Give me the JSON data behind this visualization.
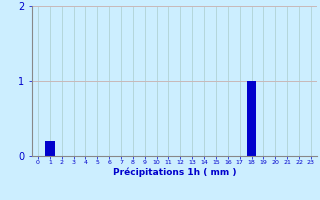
{
  "hours": [
    0,
    1,
    2,
    3,
    4,
    5,
    6,
    7,
    8,
    9,
    10,
    11,
    12,
    13,
    14,
    15,
    16,
    17,
    18,
    19,
    20,
    21,
    22,
    23
  ],
  "values": [
    0,
    0.2,
    0,
    0,
    0,
    0,
    0,
    0,
    0,
    0,
    0,
    0,
    0,
    0,
    0,
    0,
    0,
    0,
    1.0,
    0,
    0,
    0,
    0,
    0
  ],
  "bar_color": "#0000cc",
  "background_color": "#cceeff",
  "grid_color_h": "#c8b8b8",
  "grid_color_v": "#aacccc",
  "xlabel": "Précipitations 1h ( mm )",
  "xlabel_color": "#0000cc",
  "tick_color": "#0000cc",
  "axis_color": "#888888",
  "ylim": [
    0,
    2
  ],
  "yticks": [
    0,
    1,
    2
  ],
  "xtick_labels": [
    "0",
    "1",
    "2",
    "3",
    "4",
    "5",
    "6",
    "7",
    "8",
    "9",
    "10",
    "11",
    "12",
    "13",
    "14",
    "15",
    "16",
    "17",
    "18",
    "19",
    "20",
    "21",
    "22",
    "23"
  ]
}
